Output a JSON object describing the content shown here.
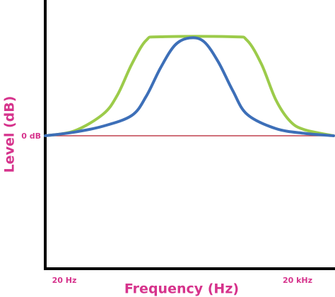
{
  "chart_data": {
    "type": "line",
    "title": "",
    "xlabel": "Frequency (Hz)",
    "ylabel": "Level (dB)",
    "x_tick_labels": [
      "20 Hz",
      "20 kHz"
    ],
    "y_tick_labels": [
      "0 dB"
    ],
    "xlim": [
      0,
      100
    ],
    "ylim": [
      -100,
      100
    ],
    "grid": false,
    "legend": "none",
    "reference_line": {
      "label": "0 dB",
      "y": 0,
      "color": "#c0404f"
    },
    "series": [
      {
        "color": "#9ccb4a",
        "x": [
          0,
          10,
          20,
          25,
          30,
          35,
          40,
          65,
          70,
          75,
          80,
          85,
          90,
          100
        ],
        "y": [
          0,
          4,
          18,
          34,
          60,
          80,
          83,
          83,
          80,
          60,
          30,
          12,
          5,
          0
        ]
      },
      {
        "color": "#3d6fb8",
        "x": [
          0,
          10,
          20,
          30,
          35,
          40,
          45,
          50,
          55,
          60,
          65,
          70,
          80,
          90,
          100
        ],
        "y": [
          0,
          3,
          8,
          17,
          33,
          57,
          76,
          82,
          79,
          62,
          38,
          18,
          6,
          2,
          0
        ]
      }
    ],
    "colors": {
      "text": "#d6338c",
      "axis": "#000000"
    }
  }
}
